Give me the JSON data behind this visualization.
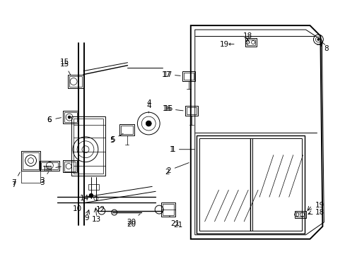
{
  "bg_color": "#ffffff",
  "line_color": "#000000",
  "fig_width": 4.89,
  "fig_height": 3.6,
  "dpi": 100,
  "font_size": 7.5,
  "lw_thin": 0.7,
  "lw_med": 1.0,
  "lw_thick": 1.4
}
